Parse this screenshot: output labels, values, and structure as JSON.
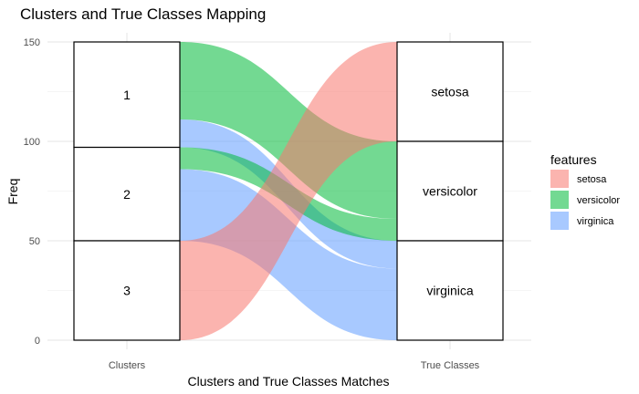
{
  "chart_data": {
    "type": "alluvial",
    "title": "Clusters and True Classes Mapping",
    "xlabel": "Clusters and True Classes Matches",
    "ylabel": "Freq",
    "ylim": [
      0,
      150
    ],
    "yticks": [
      0,
      50,
      100,
      150
    ],
    "axes": [
      "Clusters",
      "True Classes"
    ],
    "strata": {
      "Clusters": [
        {
          "label": "1",
          "value": 53
        },
        {
          "label": "2",
          "value": 47
        },
        {
          "label": "3",
          "value": 50
        }
      ],
      "True Classes": [
        {
          "label": "setosa",
          "value": 50
        },
        {
          "label": "versicolor",
          "value": 50
        },
        {
          "label": "virginica",
          "value": 50
        }
      ]
    },
    "flows": [
      {
        "cluster": "1",
        "feature": "versicolor",
        "value": 39
      },
      {
        "cluster": "1",
        "feature": "virginica",
        "value": 14
      },
      {
        "cluster": "2",
        "feature": "versicolor",
        "value": 11
      },
      {
        "cluster": "2",
        "feature": "virginica",
        "value": 36
      },
      {
        "cluster": "3",
        "feature": "setosa",
        "value": 50
      }
    ],
    "legend": {
      "title": "features",
      "position": "right",
      "items": [
        {
          "name": "setosa",
          "color": "#F8766D"
        },
        {
          "name": "versicolor",
          "color": "#00BA38"
        },
        {
          "name": "virginica",
          "color": "#619CFF"
        }
      ]
    },
    "grid": true
  }
}
